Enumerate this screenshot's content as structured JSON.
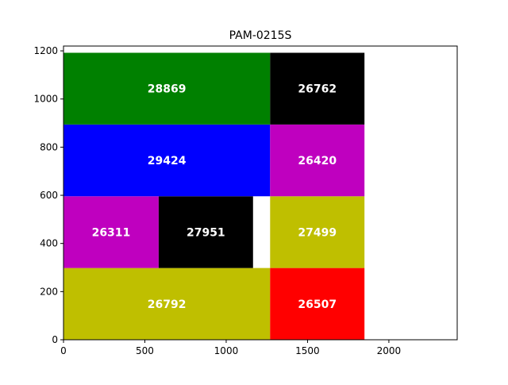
{
  "chart_data": {
    "type": "treemap",
    "title": "PAM-0215S",
    "xlabel": "",
    "ylabel": "",
    "xlim": [
      0,
      2420
    ],
    "ylim": [
      0,
      1220
    ],
    "xticks": [
      0,
      500,
      1000,
      1500,
      2000
    ],
    "yticks": [
      0,
      200,
      400,
      600,
      800,
      1000,
      1200
    ],
    "grid": false,
    "rectangles": [
      {
        "label": "26792",
        "x0": 0,
        "x1": 1270,
        "y0": 0,
        "y1": 298,
        "color": "#bfbf00"
      },
      {
        "label": "26507",
        "x0": 1270,
        "x1": 1850,
        "y0": 0,
        "y1": 298,
        "color": "#ff0000"
      },
      {
        "label": "26311",
        "x0": 0,
        "x1": 585,
        "y0": 298,
        "y1": 596,
        "color": "#bf00bf"
      },
      {
        "label": "27951",
        "x0": 585,
        "x1": 1165,
        "y0": 298,
        "y1": 596,
        "color": "#000000"
      },
      {
        "label": "27499",
        "x0": 1270,
        "x1": 1850,
        "y0": 298,
        "y1": 596,
        "color": "#bfbf00"
      },
      {
        "label": "29424",
        "x0": 0,
        "x1": 1270,
        "y0": 596,
        "y1": 894,
        "color": "#0000ff"
      },
      {
        "label": "26420",
        "x0": 1270,
        "x1": 1850,
        "y0": 596,
        "y1": 894,
        "color": "#bf00bf"
      },
      {
        "label": "28869",
        "x0": 0,
        "x1": 1270,
        "y0": 894,
        "y1": 1192,
        "color": "#008000"
      },
      {
        "label": "26762",
        "x0": 1270,
        "x1": 1850,
        "y0": 894,
        "y1": 1192,
        "color": "#000000"
      }
    ]
  }
}
